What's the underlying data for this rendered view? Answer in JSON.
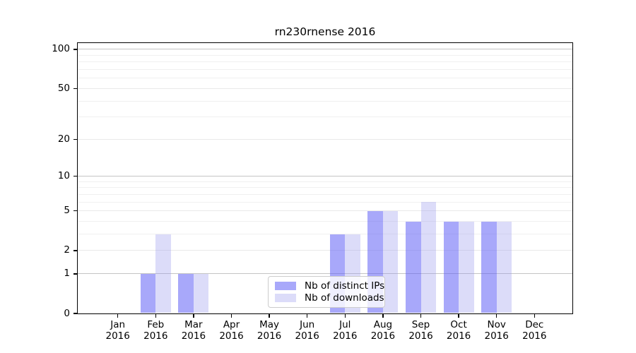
{
  "title": "rn230rnense 2016",
  "chart_data": {
    "type": "bar",
    "title": "rn230rnense 2016",
    "categories": [
      "Jan 2016",
      "Feb 2016",
      "Mar 2016",
      "Apr 2016",
      "May 2016",
      "Jun 2016",
      "Jul 2016",
      "Aug 2016",
      "Sep 2016",
      "Oct 2016",
      "Nov 2016",
      "Dec 2016"
    ],
    "series": [
      {
        "name": "Nb of distinct IPs",
        "color": "#a9a9f9",
        "values": [
          0,
          1,
          1,
          0,
          0,
          0,
          3,
          5,
          4,
          4,
          4,
          0
        ]
      },
      {
        "name": "Nb of downloads",
        "color": "#dcdcf9",
        "values": [
          0,
          3,
          1,
          0,
          0,
          0,
          3,
          5,
          6,
          4,
          4,
          0
        ]
      }
    ],
    "xlabel": "",
    "ylabel": "",
    "yscale": "log1p",
    "ylim": [
      0,
      110
    ],
    "y_tick_values": [
      0,
      1,
      2,
      5,
      10,
      20,
      50,
      100
    ],
    "y_tick_labels": [
      "0",
      "1",
      "2",
      "5",
      "10",
      "20",
      "50",
      "100"
    ],
    "y_strong_gridlines": [
      1,
      10,
      100
    ],
    "y_weak_gridlines": [
      2,
      5,
      20,
      50
    ],
    "y_minor_gridlines": [
      3,
      4,
      6,
      7,
      8,
      9,
      30,
      40,
      60,
      70,
      80,
      90
    ],
    "grid": true,
    "legend_position": "lower center"
  },
  "colors": {
    "background": "#ffffff",
    "axis": "#000000",
    "grid_strong": "#c4c4c4",
    "grid_weak": "#e9e9e9",
    "grid_minor": "#f0f0f0",
    "legend_border": "#cccccc"
  }
}
